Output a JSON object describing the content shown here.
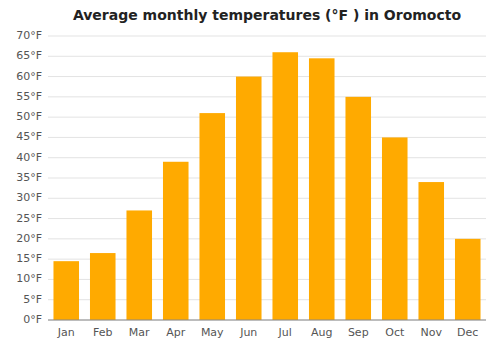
{
  "chart_data": {
    "type": "bar",
    "title": "Average monthly temperatures (°F ) in Oromocto",
    "categories": [
      "Jan",
      "Feb",
      "Mar",
      "Apr",
      "May",
      "Jun",
      "Jul",
      "Aug",
      "Sep",
      "Oct",
      "Nov",
      "Dec"
    ],
    "values": [
      14.5,
      16.5,
      27.0,
      39.0,
      51.0,
      60.0,
      66.0,
      64.5,
      55.0,
      45.0,
      34.0,
      20.0
    ],
    "color": "#FFAA00",
    "ylim": [
      0,
      70
    ],
    "yticks": [
      {
        "value": 0,
        "label": "0°F"
      },
      {
        "value": 5,
        "label": "5°F"
      },
      {
        "value": 10,
        "label": "10°F"
      },
      {
        "value": 15,
        "label": "15°F"
      },
      {
        "value": 20,
        "label": "20°F"
      },
      {
        "value": 25,
        "label": "25°F"
      },
      {
        "value": 30,
        "label": "30°F"
      },
      {
        "value": 35,
        "label": "35°F"
      },
      {
        "value": 40,
        "label": "40°F"
      },
      {
        "value": 45,
        "label": "45°F"
      },
      {
        "value": 50,
        "label": "50°F"
      },
      {
        "value": 55,
        "label": "55°F"
      },
      {
        "value": 60,
        "label": "60°F"
      },
      {
        "value": 65,
        "label": "65°F"
      },
      {
        "value": 70,
        "label": "70°F"
      }
    ],
    "grid": true
  }
}
